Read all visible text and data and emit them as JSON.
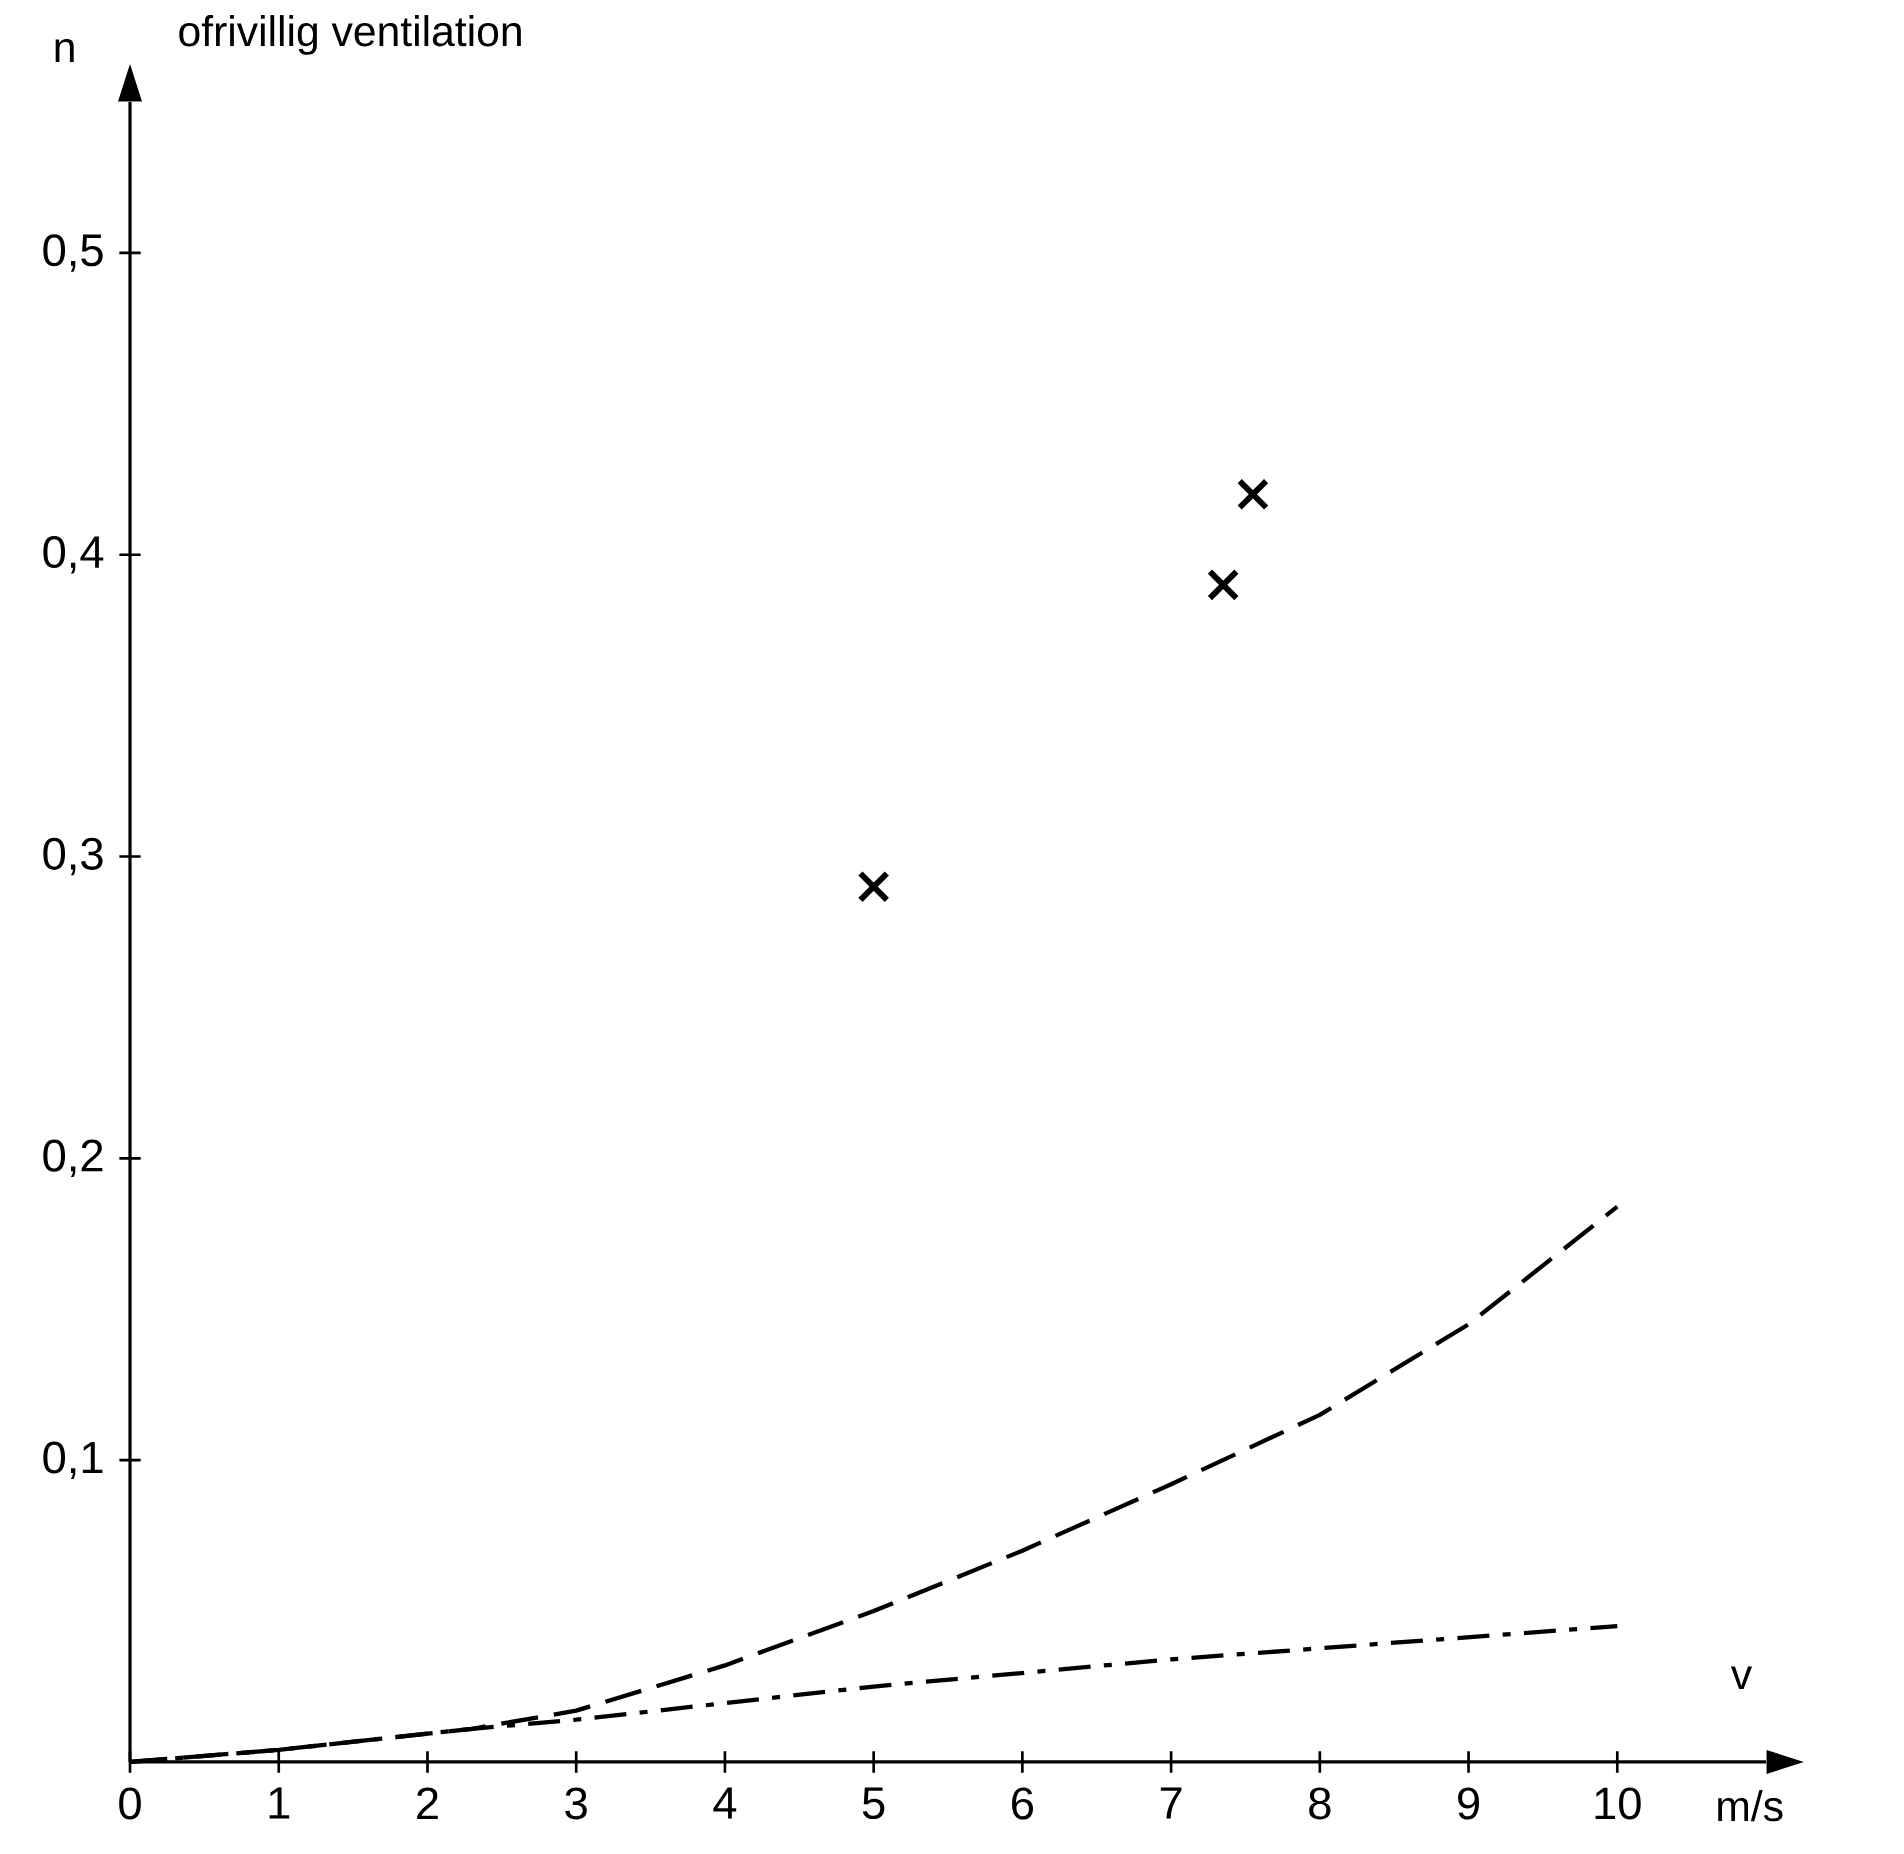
{
  "chart_data": {
    "type": "line",
    "title": "ofrivillig ventilation",
    "xlabel": "v",
    "ylabel": "n",
    "annotations": [
      "m/s"
    ],
    "xlim": [
      0,
      11
    ],
    "ylim": [
      0,
      0.55
    ],
    "xticks": [
      0,
      1,
      2,
      3,
      4,
      5,
      6,
      7,
      8,
      9,
      10
    ],
    "yticks": [
      {
        "value": 0.1,
        "label": "0,1"
      },
      {
        "value": 0.2,
        "label": "0,2"
      },
      {
        "value": 0.3,
        "label": "0,3"
      },
      {
        "value": 0.4,
        "label": "0,4"
      },
      {
        "value": 0.5,
        "label": "0,5"
      }
    ],
    "series": [
      {
        "line_style": "dashed",
        "color": "#000000",
        "x": [
          0,
          1,
          2.3,
          3,
          4,
          5,
          6,
          7,
          8,
          9,
          10
        ],
        "values": [
          0,
          0.004,
          0.011,
          0.017,
          0.032,
          0.05,
          0.07,
          0.092,
          0.115,
          0.145,
          0.184
        ]
      },
      {
        "line_style": "dashdot",
        "color": "#000000",
        "x": [
          0,
          1,
          2.3,
          3,
          5,
          7,
          10
        ],
        "values": [
          0,
          0.004,
          0.011,
          0.014,
          0.025,
          0.034,
          0.045
        ]
      },
      {
        "type": "scatter",
        "marker": "cross",
        "color": "#000000",
        "x": [
          5.0,
          7.35,
          7.55
        ],
        "values": [
          0.29,
          0.39,
          0.42
        ]
      }
    ]
  }
}
